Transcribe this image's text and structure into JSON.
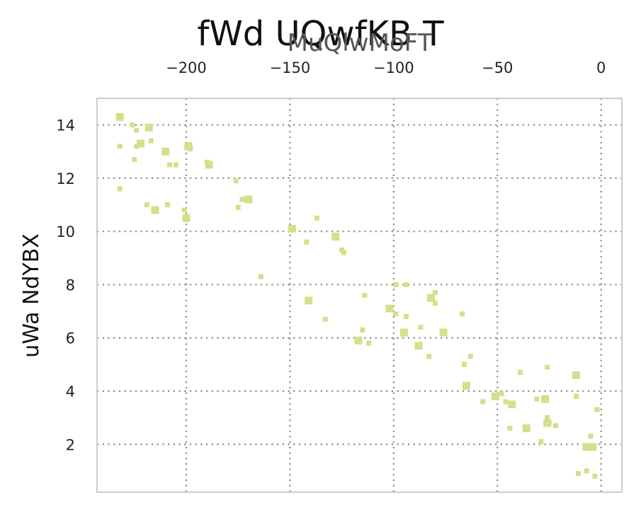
{
  "chart_data": {
    "type": "scatter",
    "title": "fWd UQwfKB  T",
    "xlabel": "MuQlwMoFT",
    "ylabel": "uWa NdYBX",
    "x_axis_position": "top",
    "xlim": [
      -243,
      10
    ],
    "ylim": [
      0.2,
      15.0
    ],
    "xticks": [
      -200,
      -150,
      -100,
      -50,
      0
    ],
    "yticks": [
      2,
      4,
      6,
      8,
      10,
      12,
      14
    ],
    "grid": true,
    "grid_style": "dotted",
    "marker": "square",
    "color": "#d4e08a",
    "points": [
      {
        "x": -232,
        "y": 14.3
      },
      {
        "x": -226,
        "y": 14.0
      },
      {
        "x": -224,
        "y": 13.8
      },
      {
        "x": -218,
        "y": 13.9
      },
      {
        "x": -232,
        "y": 13.2
      },
      {
        "x": -224,
        "y": 13.2
      },
      {
        "x": -222,
        "y": 13.3
      },
      {
        "x": -217,
        "y": 13.4
      },
      {
        "x": -225,
        "y": 12.7
      },
      {
        "x": -210,
        "y": 13.0
      },
      {
        "x": -208,
        "y": 12.5
      },
      {
        "x": -205,
        "y": 12.5
      },
      {
        "x": -199,
        "y": 13.2
      },
      {
        "x": -198,
        "y": 13.1
      },
      {
        "x": -190,
        "y": 12.6
      },
      {
        "x": -189,
        "y": 12.5
      },
      {
        "x": -232,
        "y": 11.6
      },
      {
        "x": -219,
        "y": 11.0
      },
      {
        "x": -215,
        "y": 10.8
      },
      {
        "x": -209,
        "y": 11.0
      },
      {
        "x": -201,
        "y": 10.8
      },
      {
        "x": -200,
        "y": 10.5
      },
      {
        "x": -176,
        "y": 11.9
      },
      {
        "x": -173,
        "y": 11.2
      },
      {
        "x": -170,
        "y": 11.2
      },
      {
        "x": -175,
        "y": 10.9
      },
      {
        "x": -164,
        "y": 8.3
      },
      {
        "x": -149,
        "y": 10.1
      },
      {
        "x": -142,
        "y": 9.6
      },
      {
        "x": -137,
        "y": 10.5
      },
      {
        "x": -128,
        "y": 9.8
      },
      {
        "x": -125,
        "y": 9.3
      },
      {
        "x": -124,
        "y": 9.2
      },
      {
        "x": -141,
        "y": 7.4
      },
      {
        "x": -133,
        "y": 6.7
      },
      {
        "x": -114,
        "y": 7.6
      },
      {
        "x": -117,
        "y": 5.9
      },
      {
        "x": -115,
        "y": 6.3
      },
      {
        "x": -112,
        "y": 5.8
      },
      {
        "x": -102,
        "y": 7.1
      },
      {
        "x": -99,
        "y": 8.0
      },
      {
        "x": -99,
        "y": 6.9
      },
      {
        "x": -95,
        "y": 6.2
      },
      {
        "x": -94,
        "y": 6.8
      },
      {
        "x": -94,
        "y": 8.0
      },
      {
        "x": -88,
        "y": 5.7
      },
      {
        "x": -87,
        "y": 6.4
      },
      {
        "x": -83,
        "y": 5.3
      },
      {
        "x": -82,
        "y": 7.5
      },
      {
        "x": -80,
        "y": 7.7
      },
      {
        "x": -80,
        "y": 7.3
      },
      {
        "x": -76,
        "y": 6.2
      },
      {
        "x": -67,
        "y": 6.9
      },
      {
        "x": -66,
        "y": 5.0
      },
      {
        "x": -65,
        "y": 4.2
      },
      {
        "x": -63,
        "y": 5.3
      },
      {
        "x": -57,
        "y": 3.6
      },
      {
        "x": -51,
        "y": 3.8
      },
      {
        "x": -48,
        "y": 3.9
      },
      {
        "x": -46,
        "y": 3.6
      },
      {
        "x": -43,
        "y": 3.5
      },
      {
        "x": -44,
        "y": 2.6
      },
      {
        "x": -39,
        "y": 4.7
      },
      {
        "x": -36,
        "y": 2.6
      },
      {
        "x": -31,
        "y": 3.7
      },
      {
        "x": -29,
        "y": 2.1
      },
      {
        "x": -27,
        "y": 3.7
      },
      {
        "x": -26,
        "y": 4.9
      },
      {
        "x": -26,
        "y": 3.0
      },
      {
        "x": -26,
        "y": 2.8
      },
      {
        "x": -25,
        "y": 2.8
      },
      {
        "x": -22,
        "y": 2.7
      },
      {
        "x": -12,
        "y": 4.6
      },
      {
        "x": -12,
        "y": 3.8
      },
      {
        "x": -11,
        "y": 0.9
      },
      {
        "x": -7,
        "y": 1.9
      },
      {
        "x": -7,
        "y": 1.0
      },
      {
        "x": -5,
        "y": 2.3
      },
      {
        "x": -4,
        "y": 1.9
      },
      {
        "x": -3,
        "y": 0.8
      },
      {
        "x": -2,
        "y": 3.3
      }
    ]
  }
}
